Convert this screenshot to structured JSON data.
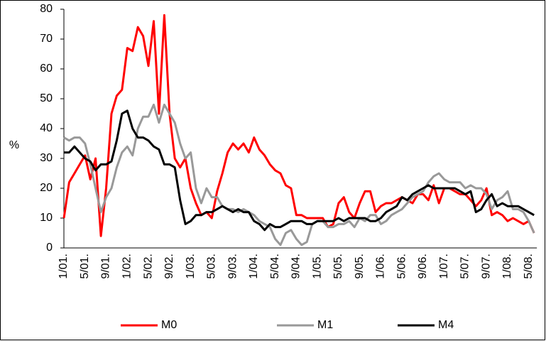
{
  "chart_data": {
    "type": "line",
    "y_label": "%",
    "categories": [
      "1/01.",
      null,
      null,
      null,
      "5/01.",
      null,
      null,
      null,
      "9/01.",
      null,
      null,
      null,
      "1/02.",
      null,
      null,
      null,
      "5/02.",
      null,
      null,
      null,
      "9/02.",
      null,
      null,
      null,
      "1/03.",
      null,
      null,
      null,
      "5/03.",
      null,
      null,
      null,
      "9/03.",
      null,
      null,
      null,
      "1/04.",
      null,
      null,
      null,
      "5/04.",
      null,
      null,
      null,
      "9/04.",
      null,
      null,
      null,
      "1/05.",
      null,
      null,
      null,
      "5/05.",
      null,
      null,
      null,
      "9/05.",
      null,
      null,
      null,
      "1/06.",
      null,
      null,
      null,
      "5/06.",
      null,
      null,
      null,
      "9/06.",
      null,
      null,
      null,
      "1/07.",
      null,
      null,
      null,
      "5/07.",
      null,
      null,
      null,
      "9/07.",
      null,
      null,
      null,
      "1/08.",
      null,
      null,
      null,
      "5/08.",
      null
    ],
    "series": [
      {
        "name": "M0",
        "color": "#ff0000",
        "values": [
          10,
          22,
          25,
          28,
          31,
          23,
          30,
          4,
          20,
          45,
          51,
          53,
          67,
          66,
          74,
          71,
          61,
          76,
          45,
          78,
          45,
          30,
          27,
          30,
          20,
          15,
          11,
          12,
          10,
          19,
          25,
          32,
          35,
          33,
          35,
          32,
          37,
          33,
          31,
          28,
          26,
          25,
          21,
          20,
          11,
          11,
          10,
          10,
          10,
          10,
          7,
          8,
          15,
          17,
          12,
          10,
          15,
          19,
          19,
          12,
          14,
          15,
          15,
          16,
          17,
          16,
          15,
          18,
          18,
          16,
          21,
          15,
          20,
          20,
          19,
          18,
          18,
          16,
          14,
          16,
          20,
          11,
          12,
          11,
          9,
          10,
          9,
          8,
          9,
          5
        ]
      },
      {
        "name": "M1",
        "color": "#999999",
        "values": [
          37,
          36,
          37,
          37,
          35,
          28,
          20,
          12,
          17,
          20,
          27,
          32,
          34,
          31,
          40,
          44,
          44,
          48,
          42,
          48,
          45,
          42,
          35,
          30,
          32,
          20,
          15,
          20,
          17,
          17,
          14,
          13,
          13,
          12,
          13,
          12,
          11,
          9,
          8,
          7,
          3,
          1,
          5,
          6,
          3,
          1,
          2,
          8,
          9,
          9,
          7,
          7,
          8,
          8,
          9,
          7,
          10,
          9,
          11,
          11,
          8,
          9,
          11,
          12,
          13,
          15,
          17,
          18,
          19,
          22,
          24,
          25,
          23,
          22,
          22,
          22,
          20,
          21,
          20,
          20,
          18,
          13,
          16,
          17,
          19,
          13,
          13,
          12,
          9,
          5
        ]
      },
      {
        "name": "M4",
        "color": "#000000",
        "values": [
          32,
          32,
          34,
          32,
          30,
          29,
          26,
          28,
          28,
          29,
          36,
          45,
          46,
          40,
          37,
          37,
          36,
          34,
          33,
          28,
          28,
          27,
          16,
          8,
          9,
          11,
          11,
          12,
          12,
          13,
          14,
          13,
          12,
          13,
          12,
          12,
          9,
          8,
          6,
          8,
          7,
          7,
          8,
          9,
          9,
          9,
          8,
          8,
          9,
          9,
          9,
          9,
          10,
          9,
          10,
          10,
          10,
          10,
          9,
          9,
          10,
          12,
          13,
          14,
          17,
          16,
          18,
          19,
          20,
          21,
          20,
          20,
          20,
          20,
          20,
          19,
          18,
          19,
          12,
          13,
          16,
          18,
          14,
          15,
          14,
          14,
          14,
          13,
          12,
          11
        ]
      }
    ],
    "ylim": [
      0,
      80
    ],
    "yticks": [
      0,
      10,
      20,
      30,
      40,
      50,
      60,
      70,
      80
    ],
    "grid": false,
    "legend": "bottom"
  }
}
